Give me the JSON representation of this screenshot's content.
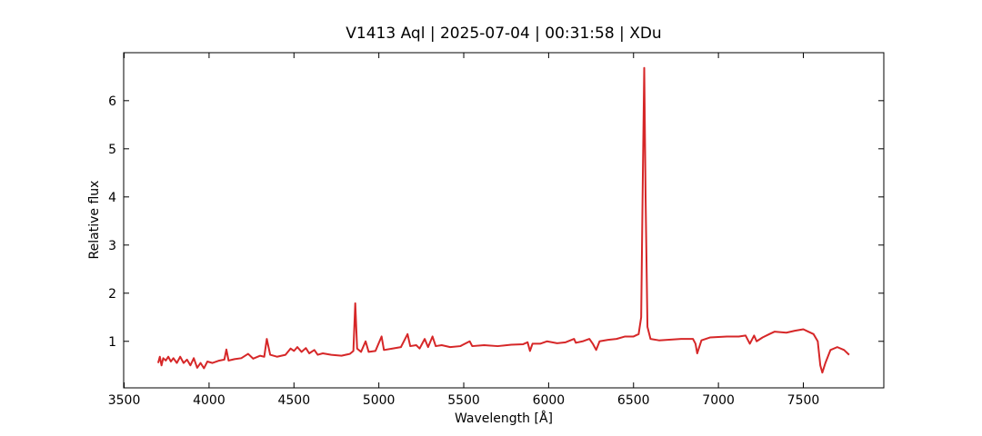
{
  "chart_data": {
    "type": "line",
    "title": "V1413 Aql | 2025-07-04 | 00:31:58 | XDu",
    "x_label": "Wavelength [Å]",
    "y_label": "Relative flux",
    "color": "#d62728",
    "x": [
      3700,
      3710,
      3720,
      3730,
      3745,
      3760,
      3775,
      3790,
      3810,
      3830,
      3850,
      3870,
      3890,
      3910,
      3930,
      3950,
      3970,
      3990,
      4020,
      4060,
      4090,
      4102,
      4115,
      4150,
      4190,
      4230,
      4260,
      4300,
      4325,
      4340,
      4360,
      4400,
      4450,
      4480,
      4500,
      4520,
      4545,
      4570,
      4590,
      4620,
      4640,
      4670,
      4720,
      4780,
      4830,
      4850,
      4861,
      4872,
      4895,
      4922,
      4940,
      4980,
      5016,
      5030,
      5080,
      5130,
      5169,
      5185,
      5220,
      5240,
      5270,
      5290,
      5316,
      5335,
      5370,
      5420,
      5480,
      5535,
      5550,
      5620,
      5700,
      5780,
      5850,
      5876,
      5890,
      5905,
      5950,
      5990,
      6050,
      6100,
      6150,
      6160,
      6200,
      6240,
      6260,
      6280,
      6300,
      6350,
      6400,
      6450,
      6500,
      6530,
      6545,
      6555,
      6563,
      6571,
      6582,
      6600,
      6650,
      6700,
      6780,
      6850,
      6865,
      6875,
      6900,
      6950,
      7050,
      7120,
      7160,
      7185,
      7210,
      7225,
      7260,
      7300,
      7330,
      7400,
      7450,
      7500,
      7530,
      7560,
      7585,
      7600,
      7612,
      7630,
      7660,
      7700,
      7740,
      7770
    ],
    "values": [
      0.55,
      0.68,
      0.5,
      0.65,
      0.6,
      0.68,
      0.58,
      0.65,
      0.55,
      0.68,
      0.55,
      0.62,
      0.5,
      0.65,
      0.45,
      0.55,
      0.44,
      0.58,
      0.55,
      0.6,
      0.62,
      0.83,
      0.6,
      0.63,
      0.65,
      0.74,
      0.64,
      0.7,
      0.68,
      1.05,
      0.72,
      0.68,
      0.72,
      0.85,
      0.8,
      0.88,
      0.78,
      0.86,
      0.75,
      0.82,
      0.72,
      0.75,
      0.72,
      0.7,
      0.74,
      0.8,
      1.79,
      0.85,
      0.78,
      1.0,
      0.78,
      0.8,
      1.1,
      0.82,
      0.85,
      0.88,
      1.15,
      0.9,
      0.92,
      0.85,
      1.05,
      0.88,
      1.1,
      0.9,
      0.92,
      0.88,
      0.9,
      1.0,
      0.9,
      0.92,
      0.9,
      0.93,
      0.94,
      0.98,
      0.8,
      0.95,
      0.95,
      1.0,
      0.96,
      0.98,
      1.05,
      0.97,
      1.0,
      1.05,
      0.95,
      0.82,
      1.0,
      1.03,
      1.05,
      1.1,
      1.1,
      1.15,
      1.5,
      4.5,
      6.68,
      4.0,
      1.3,
      1.05,
      1.02,
      1.03,
      1.05,
      1.05,
      0.95,
      0.75,
      1.02,
      1.08,
      1.1,
      1.1,
      1.12,
      0.95,
      1.12,
      1.0,
      1.08,
      1.15,
      1.2,
      1.18,
      1.22,
      1.25,
      1.2,
      1.15,
      1.0,
      0.5,
      0.35,
      0.55,
      0.82,
      0.88,
      0.82,
      0.72
    ],
    "xlim": [
      3497,
      7974
    ],
    "ylim": [
      0.033,
      6.997
    ],
    "xticks": [
      3500,
      4000,
      4500,
      5000,
      5500,
      6000,
      6500,
      7000,
      7500
    ],
    "yticks": [
      1,
      2,
      3,
      4,
      5,
      6
    ],
    "grid": false
  }
}
